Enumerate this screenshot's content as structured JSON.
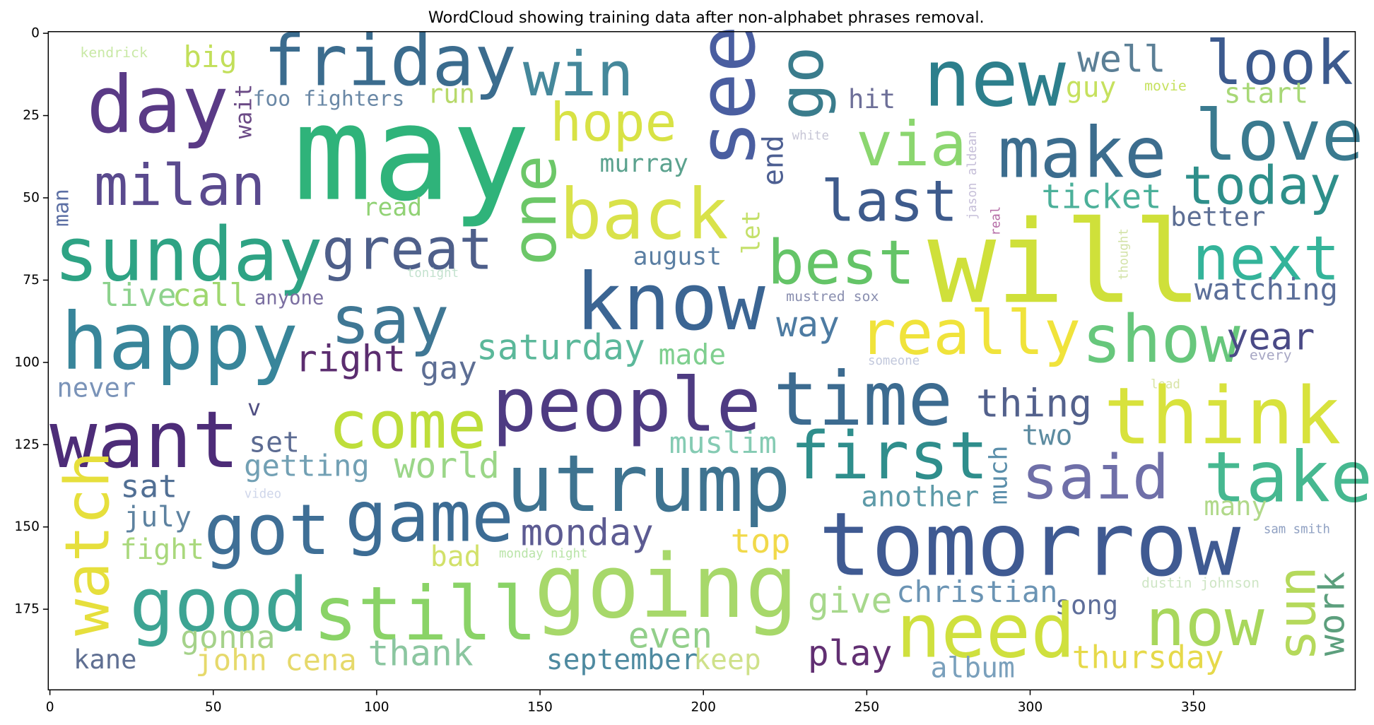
{
  "chart_data": {
    "type": "wordcloud",
    "title": "WordCloud showing training data after non-alphabet phrases removal.",
    "xlim": [
      -0.5,
      399.5
    ],
    "ylim": [
      199.5,
      -0.5
    ],
    "xticks": [
      0,
      50,
      100,
      150,
      200,
      250,
      300,
      350
    ],
    "yticks": [
      0,
      25,
      50,
      75,
      100,
      125,
      150,
      175
    ],
    "words": [
      "kendrick",
      "big",
      "friday",
      "win",
      "see",
      "go",
      "new",
      "well",
      "look",
      "day",
      "may",
      "foo fighters",
      "run",
      "wait",
      "hope",
      "guy",
      "movie",
      "start",
      "hit",
      "white",
      "jason aldean",
      "via",
      "make",
      "love",
      "milan",
      "one",
      "murray",
      "end",
      "last",
      "today",
      "man",
      "back",
      "read",
      "ticket",
      "real",
      "better",
      "sunday",
      "great",
      "let",
      "august",
      "thought",
      "tonight",
      "will",
      "best",
      "next",
      "live",
      "call",
      "anyone",
      "mustred sox",
      "watching",
      "know",
      "say",
      "happy",
      "way",
      "really",
      "show",
      "year",
      "saturday",
      "made",
      "right",
      "gay",
      "someone",
      "every",
      "never",
      "lead",
      "people",
      "time",
      "thing",
      "think",
      "v",
      "want",
      "come",
      "set",
      "muslim",
      "two",
      "first",
      "getting",
      "world",
      "much",
      "utrump",
      "said",
      "take",
      "watch",
      "sat",
      "video",
      "another",
      "got",
      "game",
      "july",
      "many",
      "monday",
      "tomorrow",
      "sam smith",
      "fight",
      "top",
      "bad",
      "monday night",
      "sun",
      "work",
      "good",
      "still",
      "going",
      "dustin johnson",
      "christian",
      "give",
      "song",
      "need",
      "now",
      "gonna",
      "even",
      "kane",
      "john cena",
      "thank",
      "play",
      "september",
      "keep",
      "album",
      "thursday"
    ]
  }
}
